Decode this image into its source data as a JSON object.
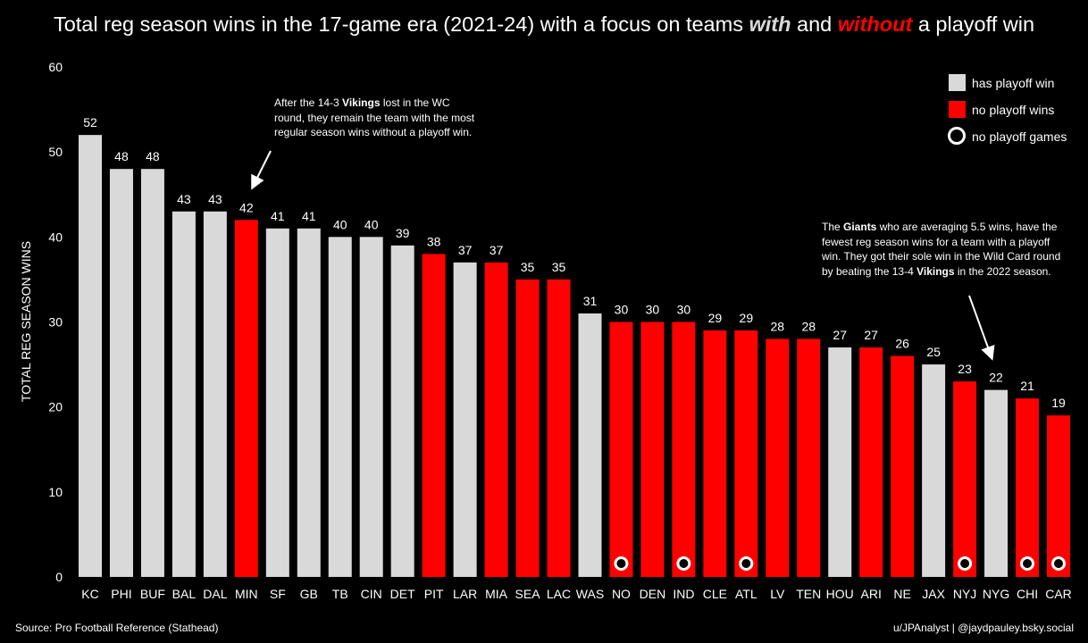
{
  "title": {
    "pre": "Total reg season wins in the 17-game era (2021-24) with a focus on teams ",
    "with": "with",
    "mid": " and ",
    "without": "without",
    "post": " a playoff win"
  },
  "source": "Source: Pro Football Reference (Stathead)",
  "credit": "u/JPAnalyst | @jaydpauley.bsky.social",
  "colors": {
    "has_playoff_win": "#d9d9d9",
    "no_playoff_wins": "#ff0000",
    "background": "#000000",
    "text": "#ffffff"
  },
  "annotations": [
    {
      "parts": [
        {
          "t": "After the 14-3 "
        },
        {
          "t": "Vikings",
          "b": true
        },
        {
          "t": " lost in the WC round, they remain the team with the most regular season wins without a playoff win."
        }
      ]
    },
    {
      "parts": [
        {
          "t": "The "
        },
        {
          "t": "Giants",
          "b": true
        },
        {
          "t": " who are averaging 5.5 wins, have the fewest reg season wins for a team with a playoff win. They got their sole win in the Wild Card round by beating the 13-4 "
        },
        {
          "t": "Vikings",
          "b": true
        },
        {
          "t": " in the 2022 season."
        }
      ]
    }
  ],
  "chart_data": {
    "type": "bar",
    "title": "Total reg season wins in the 17-game era (2021-24) with a focus on teams with and without a playoff win",
    "ylabel": "TOTAL REG SEASON WINS",
    "xlabel": "",
    "ylim": [
      0,
      60
    ],
    "yticks": [
      0,
      10,
      20,
      30,
      40,
      50,
      60
    ],
    "grid": false,
    "legend_position": "top-right",
    "legend": [
      {
        "label": "has playoff win",
        "marker": "gray-square"
      },
      {
        "label": "no playoff wins",
        "marker": "red-square"
      },
      {
        "label": "no playoff games",
        "marker": "circle"
      }
    ],
    "categories": [
      "KC",
      "PHI",
      "BUF",
      "BAL",
      "DAL",
      "MIN",
      "SF",
      "GB",
      "TB",
      "CIN",
      "DET",
      "PIT",
      "LAR",
      "MIA",
      "SEA",
      "LAC",
      "WAS",
      "NO",
      "DEN",
      "IND",
      "CLE",
      "ATL",
      "LV",
      "TEN",
      "HOU",
      "ARI",
      "NE",
      "JAX",
      "NYJ",
      "NYG",
      "CHI",
      "CAR"
    ],
    "values": [
      52,
      48,
      48,
      43,
      43,
      42,
      41,
      41,
      40,
      40,
      39,
      38,
      37,
      37,
      35,
      35,
      31,
      30,
      30,
      30,
      29,
      29,
      28,
      28,
      27,
      27,
      26,
      25,
      23,
      22,
      21,
      19
    ],
    "status": [
      "win",
      "win",
      "win",
      "win",
      "win",
      "nowin",
      "win",
      "win",
      "win",
      "win",
      "win",
      "nowin",
      "win",
      "nowin",
      "nowin",
      "nowin",
      "win",
      "nogames",
      "nowin",
      "nogames",
      "nowin",
      "nogames",
      "nowin",
      "nowin",
      "win",
      "nowin",
      "nowin",
      "win",
      "nogames",
      "win",
      "nogames",
      "nogames"
    ]
  }
}
